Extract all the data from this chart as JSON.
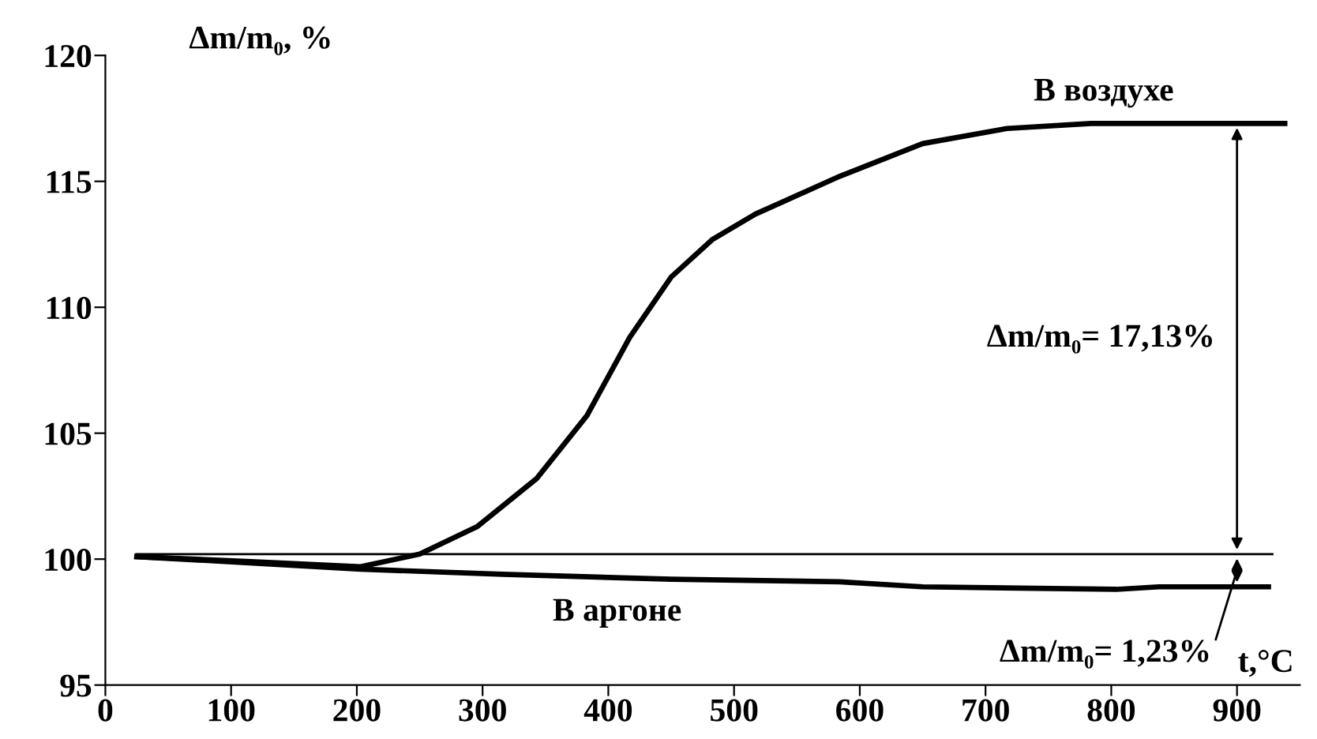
{
  "chart_data": {
    "type": "line",
    "ylabel": "Δm/m₀, %",
    "xlabel": "t,°C",
    "xlim": [
      0,
      950
    ],
    "ylim": [
      95,
      120
    ],
    "xticks": [
      0,
      100,
      200,
      300,
      400,
      500,
      600,
      700,
      800,
      900
    ],
    "yticks": [
      95,
      100,
      105,
      110,
      115,
      120
    ],
    "series": [
      {
        "name": "В воздухе",
        "color": "#000000",
        "x": [
          25,
          116,
          203,
          250,
          296,
          343,
          383,
          417,
          450,
          483,
          517,
          584,
          650,
          717,
          784,
          938
        ],
        "values": [
          100.1,
          99.9,
          99.7,
          100.2,
          101.3,
          103.2,
          105.7,
          108.8,
          111.2,
          112.7,
          113.7,
          115.2,
          116.5,
          117.1,
          117.3,
          117.3
        ]
      },
      {
        "name": "В аргоне",
        "color": "#000000",
        "x": [
          25,
          203,
          316,
          450,
          584,
          650,
          804,
          838,
          925
        ],
        "values": [
          100.1,
          99.6,
          99.4,
          99.2,
          99.1,
          98.9,
          98.8,
          98.9,
          98.9
        ]
      }
    ],
    "ref_lines": [
      {
        "axis": "y",
        "value": 100.2,
        "color": "#000000"
      }
    ],
    "annotations": [
      "Δm/m₀= 17,13%",
      "Δm/m₀= 1,23%"
    ],
    "grid": false,
    "legend": false,
    "marker": "none",
    "line_style": "solid"
  }
}
